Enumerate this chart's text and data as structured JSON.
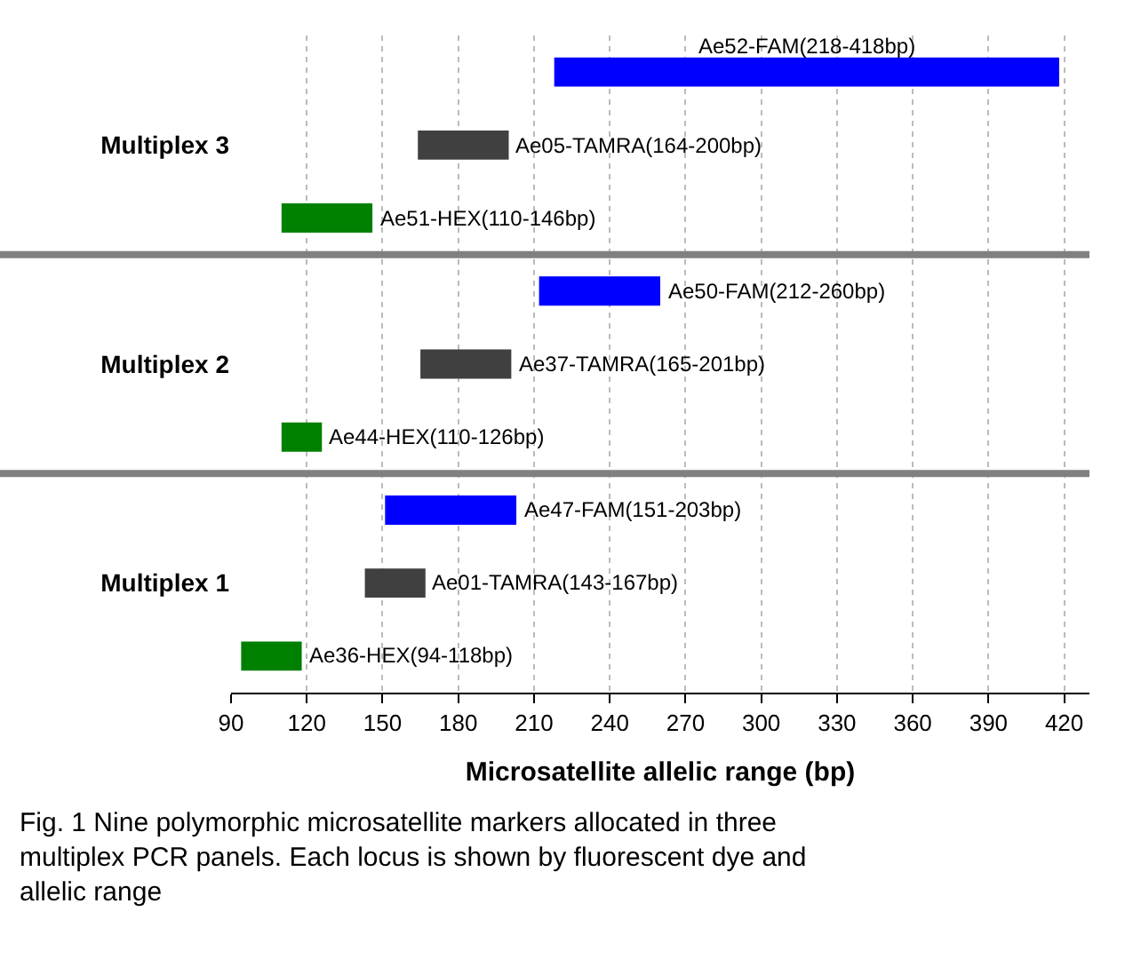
{
  "chart_data": {
    "type": "bar",
    "orientation": "horizontal",
    "categories": [
      null,
      "Multiplex 3",
      null,
      null,
      "Multiplex 2",
      null,
      null,
      "Multiplex 1",
      null
    ],
    "base": [
      218,
      164,
      110,
      212,
      165,
      110,
      151,
      143,
      94
    ],
    "values": [
      200,
      36,
      36,
      48,
      36,
      16,
      52,
      24,
      24
    ],
    "colors": [
      "#0000ff",
      "#404040",
      "#008000",
      "#0000ff",
      "#404040",
      "#008000",
      "#0000ff",
      "#404040",
      "#008000"
    ],
    "value_labels": [
      "Ae52-FAM(218-418bp)",
      "Ae05-TAMRA(164-200bp)",
      "Ae51-HEX(110-146bp)",
      "Ae50-FAM(212-260bp)",
      "Ae37-TAMRA(165-201bp)",
      "Ae44-HEX(110-126bp)",
      "Ae47-FAM(151-203bp)",
      "Ae01-TAMRA(143-167bp)",
      "Ae36-HEX(94-118bp)"
    ],
    "xlim": [
      90,
      430
    ],
    "xticks": [
      90,
      120,
      150,
      180,
      210,
      240,
      270,
      300,
      330,
      360,
      390,
      420
    ],
    "xlabel": "Microsatellite allelic range (bp)",
    "grid": "x",
    "annotations": [
      "Fig. 1 Nine polymorphic microsatellite markers allocated in three multiplex PCR panels. Each locus is shown by fluorescent dye and allelic range"
    ]
  }
}
